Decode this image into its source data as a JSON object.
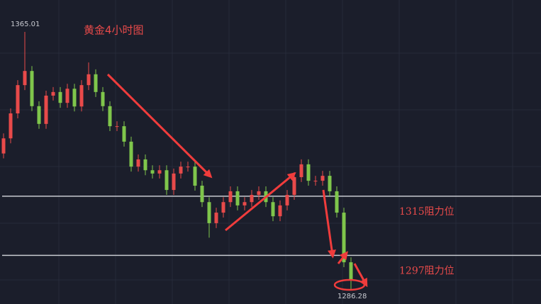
{
  "chart_data": {
    "type": "candlestick",
    "title": "黄金4小时图",
    "ylim": [
      1282.2,
      1374.7
    ],
    "up_color": "#e84a4a",
    "down_color": "#7fc64b",
    "line_color": "#c8cad0",
    "label_color": "#e84a4a",
    "max_label": 1365.01,
    "min_label": 1286.28,
    "hlines": [
      {
        "value": 1315,
        "label": "1315阻力位"
      },
      {
        "value": 1297,
        "label": "1297阻力位"
      }
    ],
    "open": [
      1328.0,
      1332.6,
      1340.2,
      1348.8,
      1353.1,
      1342.4,
      1337.0,
      1345.6,
      1346.7,
      1343.4,
      1347.7,
      1342.3,
      1348.8,
      1352.1,
      1346.7,
      1342.4,
      1336.3,
      1336.3,
      1331.6,
      1324.0,
      1326.2,
      1322.9,
      1321.9,
      1322.9,
      1316.9,
      1321.9,
      1324.0,
      1324.0,
      1318.2,
      1313.2,
      1306.8,
      1310.0,
      1313.2,
      1316.5,
      1312.2,
      1313.2,
      1315.4,
      1316.5,
      1313.2,
      1308.9,
      1312.2,
      1315.4,
      1320.8,
      1324.7,
      1319.7,
      1319.7,
      1321.2,
      1316.5,
      1310.0,
      1294.9
    ],
    "high": [
      1334.1,
      1341.7,
      1350.3,
      1365.01,
      1354.6,
      1343.9,
      1347.1,
      1348.2,
      1348.2,
      1349.2,
      1349.2,
      1350.3,
      1355.7,
      1353.6,
      1348.2,
      1343.9,
      1337.8,
      1337.8,
      1333.1,
      1327.7,
      1327.7,
      1324.4,
      1324.4,
      1324.4,
      1323.4,
      1325.5,
      1325.5,
      1325.5,
      1319.7,
      1314.7,
      1311.5,
      1314.7,
      1318.0,
      1318.0,
      1314.7,
      1316.9,
      1318.0,
      1318.0,
      1314.7,
      1313.7,
      1316.9,
      1322.3,
      1326.2,
      1326.2,
      1321.2,
      1322.7,
      1322.7,
      1318.0,
      1311.5,
      1296.4
    ],
    "low": [
      1326.5,
      1331.1,
      1338.7,
      1347.3,
      1340.9,
      1335.5,
      1335.5,
      1344.1,
      1341.9,
      1341.9,
      1340.8,
      1340.8,
      1347.3,
      1345.2,
      1340.9,
      1334.8,
      1334.8,
      1330.1,
      1322.5,
      1322.5,
      1321.4,
      1320.4,
      1320.4,
      1315.4,
      1315.4,
      1320.4,
      1322.5,
      1316.7,
      1311.7,
      1302.4,
      1305.3,
      1308.5,
      1311.7,
      1310.7,
      1310.7,
      1311.7,
      1313.9,
      1311.7,
      1307.4,
      1307.4,
      1310.7,
      1313.9,
      1319.3,
      1318.2,
      1318.2,
      1318.2,
      1315.0,
      1308.5,
      1293.4,
      1286.28
    ],
    "close": [
      1332.6,
      1340.2,
      1348.8,
      1353.1,
      1342.4,
      1337.0,
      1345.6,
      1346.7,
      1343.4,
      1347.7,
      1342.3,
      1348.8,
      1352.1,
      1346.7,
      1342.4,
      1336.3,
      1336.3,
      1331.6,
      1324.0,
      1326.2,
      1322.9,
      1321.9,
      1322.9,
      1316.9,
      1321.9,
      1324.0,
      1324.0,
      1318.2,
      1313.2,
      1306.8,
      1310.0,
      1313.2,
      1316.5,
      1312.2,
      1313.2,
      1315.4,
      1316.5,
      1313.2,
      1308.9,
      1312.2,
      1315.4,
      1320.8,
      1324.7,
      1319.7,
      1319.7,
      1321.2,
      1316.5,
      1310.0,
      1294.9,
      1289.5
    ]
  }
}
